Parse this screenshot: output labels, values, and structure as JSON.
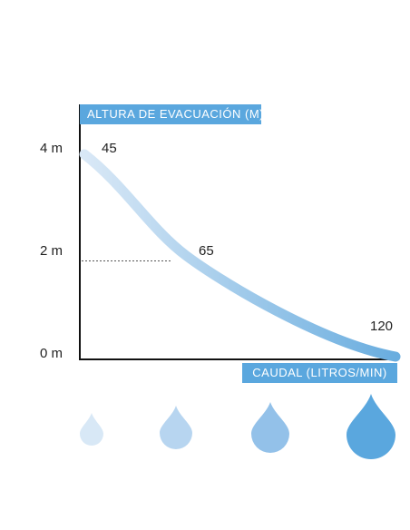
{
  "chart_data": {
    "type": "line",
    "ylabel": "ALTURA DE EVACUACIÓN (M)",
    "xlabel": "CAUDAL (LITROS/MIN)",
    "y_ticks": [
      "4 m",
      "2 m",
      "0 m"
    ],
    "y_tick_values": [
      4,
      2,
      0
    ],
    "ylim": [
      0,
      4
    ],
    "grid": false,
    "series": [
      {
        "points": [
          {
            "label": "45",
            "y": 4
          },
          {
            "label": "65",
            "y": 2
          },
          {
            "label": "120",
            "y": 0
          }
        ]
      }
    ],
    "annotations": [
      {
        "type": "dotted-guide",
        "y": 2
      }
    ]
  },
  "colors": {
    "accent": "#5aa7de",
    "curve_start": "#d9e8f6",
    "curve_end": "#69addf",
    "drops": [
      "#d8e8f6",
      "#b7d5f0",
      "#93c1e9",
      "#5aa7de"
    ]
  },
  "icons": [
    "water-drop-icon",
    "water-drop-icon",
    "water-drop-icon",
    "water-drop-icon"
  ]
}
